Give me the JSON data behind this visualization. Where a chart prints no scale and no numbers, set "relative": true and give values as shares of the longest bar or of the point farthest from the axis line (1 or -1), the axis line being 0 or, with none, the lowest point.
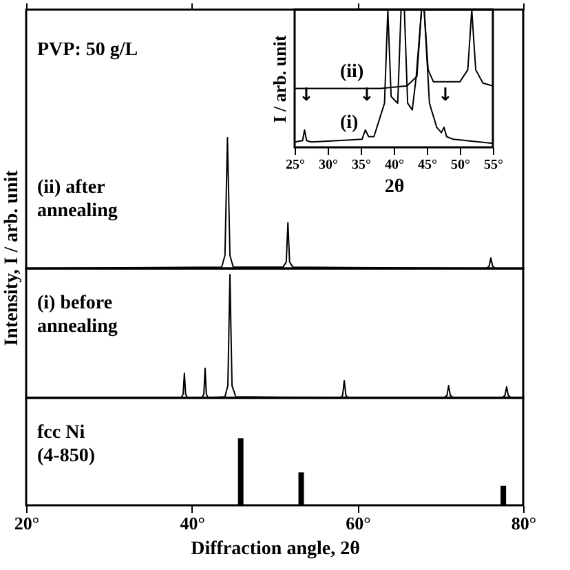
{
  "chart_data": [
    {
      "type": "line",
      "relative": true,
      "xlim": [
        20,
        80
      ],
      "xticks": [
        {
          "value": 20,
          "label": null
        },
        {
          "value": 40,
          "label": null
        },
        {
          "value": 60,
          "label": null
        },
        {
          "value": 80,
          "label": null
        }
      ],
      "tick_labels": false,
      "annotations": [
        "PVP: 50 g/L"
      ],
      "series": [
        {
          "name": "(ii) after annealing",
          "color": "#000000",
          "x": [
            20,
            43.6,
            44.0,
            44.3,
            44.6,
            45.0,
            51.0,
            51.4,
            51.6,
            51.8,
            52.2,
            75.6,
            75.9,
            76.1,
            76.3,
            76.6,
            80
          ],
          "values": [
            0,
            0.01,
            0.1,
            1,
            0.1,
            0.01,
            0.01,
            0.05,
            0.35,
            0.05,
            0.01,
            0,
            0.02,
            0.08,
            0.02,
            0,
            0
          ]
        }
      ]
    },
    {
      "type": "line",
      "relative": true,
      "xlim": [
        20,
        80
      ],
      "xticks": [
        {
          "value": 20,
          "label": null
        },
        {
          "value": 40,
          "label": null
        },
        {
          "value": 60,
          "label": null
        },
        {
          "value": 80,
          "label": null
        }
      ],
      "tick_labels": false,
      "ylabel": "Intensity, I / arb. unit",
      "series": [
        {
          "name": "(i) before annealing",
          "color": "#000000",
          "x": [
            20,
            38.7,
            38.95,
            39.1,
            39.25,
            39.5,
            41.2,
            41.45,
            41.6,
            41.75,
            42.0,
            44.0,
            44.35,
            44.6,
            44.85,
            45.3,
            57.9,
            58.2,
            58.4,
            58.6,
            58.9,
            70.4,
            70.8,
            71.0,
            71.2,
            71.6,
            77.4,
            77.8,
            78.0,
            78.2,
            78.6,
            80
          ],
          "values": [
            0,
            0,
            0.03,
            0.2,
            0.03,
            0,
            0,
            0.03,
            0.24,
            0.03,
            0,
            0.01,
            0.1,
            1,
            0.1,
            0.01,
            0,
            0.02,
            0.14,
            0.02,
            0,
            0,
            0.02,
            0.1,
            0.02,
            0,
            0,
            0.02,
            0.09,
            0.02,
            0,
            0
          ]
        }
      ]
    },
    {
      "type": "bar",
      "relative": true,
      "xlim": [
        20,
        80
      ],
      "xticks": [
        {
          "value": 20,
          "label": "20°"
        },
        {
          "value": 40,
          "label": "40°"
        },
        {
          "value": 60,
          "label": "60°"
        },
        {
          "value": 80,
          "label": "80°"
        }
      ],
      "tick_labels": "x",
      "xlabel": "Diffraction angle, 2θ",
      "annotations": [
        "fcc Ni (4-850)"
      ],
      "x": [
        45.9,
        53.2,
        77.6
      ],
      "values": [
        1,
        0.49,
        0.29
      ],
      "color": "#000000"
    },
    {
      "type": "line",
      "relative": true,
      "xlim": [
        25,
        55
      ],
      "xticks": [
        {
          "value": 25,
          "label": "25°"
        },
        {
          "value": 30,
          "label": "30°"
        },
        {
          "value": 35,
          "label": "35°"
        },
        {
          "value": 40,
          "label": "40°"
        },
        {
          "value": 45,
          "label": "45°"
        },
        {
          "value": 50,
          "label": "50°"
        },
        {
          "value": 55,
          "label": "55°"
        }
      ],
      "tick_labels": "x",
      "xlabel": "2θ",
      "ylabel": "I / arb. unit",
      "annotations": [
        "↓",
        "↓",
        "↓"
      ],
      "series": [
        {
          "name": "(ii)",
          "color": "#000000",
          "x": [
            25,
            38,
            42,
            43.5,
            44.2,
            44.6,
            45.2,
            46,
            50,
            51.2,
            51.8,
            52.4,
            53.5,
            55
          ],
          "values": [
            0.41,
            0.41,
            0.43,
            0.5,
            1,
            1,
            0.55,
            0.46,
            0.46,
            0.55,
            1,
            0.55,
            0.45,
            0.43
          ]
        },
        {
          "name": "(i)",
          "color": "#000000",
          "x": [
            25,
            26.2,
            26.5,
            26.8,
            27.5,
            35.2,
            35.7,
            36.2,
            37,
            38.6,
            39.1,
            39.6,
            40.6,
            41.1,
            41.6,
            42.1,
            42.8,
            43.4,
            44.2,
            44.6,
            45.4,
            46.5,
            47.2,
            47.6,
            48.0,
            49,
            55
          ],
          "values": [
            0.01,
            0.02,
            0.1,
            0.02,
            0.01,
            0.03,
            0.1,
            0.05,
            0.05,
            0.3,
            1,
            0.35,
            0.3,
            1,
            1,
            0.3,
            0.25,
            0.5,
            1,
            1,
            0.3,
            0.12,
            0.08,
            0.12,
            0.05,
            0.03,
            0
          ]
        }
      ]
    }
  ]
}
